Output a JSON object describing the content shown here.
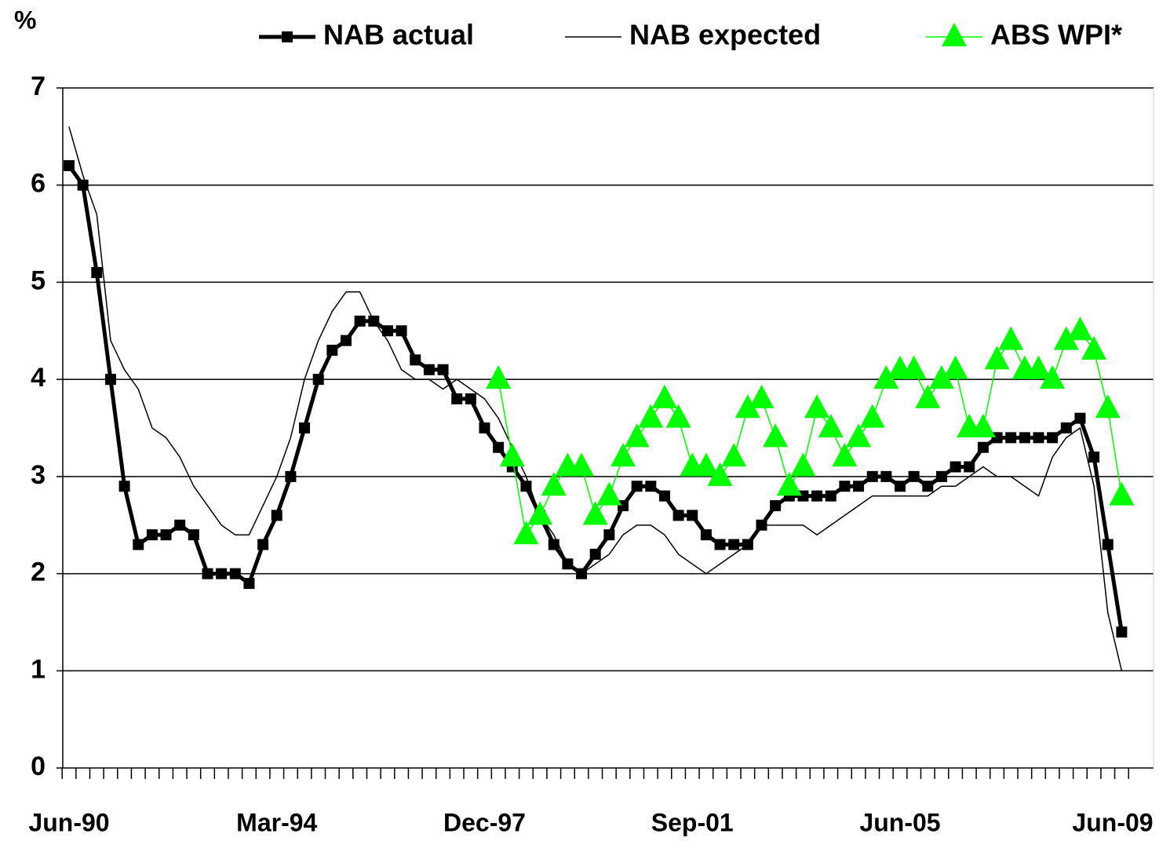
{
  "chart_data": {
    "type": "line",
    "y_label": "%",
    "categories": [
      "Jun-90",
      null,
      null,
      null,
      null,
      null,
      null,
      null,
      null,
      null,
      null,
      null,
      null,
      null,
      null,
      "Mar-94",
      null,
      null,
      null,
      null,
      null,
      null,
      null,
      null,
      null,
      null,
      null,
      null,
      null,
      null,
      "Dec-97",
      null,
      null,
      null,
      null,
      null,
      null,
      null,
      null,
      null,
      null,
      null,
      null,
      null,
      null,
      "Sep-01",
      null,
      null,
      null,
      null,
      null,
      null,
      null,
      null,
      null,
      null,
      null,
      null,
      null,
      null,
      "Jun-05",
      null,
      null,
      null,
      null,
      null,
      null,
      null,
      null,
      null,
      null,
      null,
      null,
      null,
      null,
      null,
      "Jun-09"
    ],
    "series": [
      {
        "name": "NAB actual",
        "color": "#000000",
        "marker": "square",
        "width": 5,
        "values": [
          6.2,
          6.0,
          5.1,
          4.0,
          2.9,
          2.3,
          2.4,
          2.4,
          2.5,
          2.4,
          2.0,
          2.0,
          2.0,
          1.9,
          2.3,
          2.6,
          3.0,
          3.5,
          4.0,
          4.3,
          4.4,
          4.6,
          4.6,
          4.5,
          4.5,
          4.2,
          4.1,
          4.1,
          3.8,
          3.8,
          3.5,
          3.3,
          3.1,
          2.9,
          2.6,
          2.3,
          2.1,
          2.0,
          2.2,
          2.4,
          2.7,
          2.9,
          2.9,
          2.8,
          2.6,
          2.6,
          2.4,
          2.3,
          2.3,
          2.3,
          2.5,
          2.7,
          2.8,
          2.8,
          2.8,
          2.8,
          2.9,
          2.9,
          3.0,
          3.0,
          2.9,
          3.0,
          2.9,
          3.0,
          3.1,
          3.1,
          3.3,
          3.4,
          3.4,
          3.4,
          3.4,
          3.4,
          3.5,
          3.6,
          3.2,
          2.3,
          1.4
        ]
      },
      {
        "name": "NAB expected",
        "color": "#000000",
        "marker": "none",
        "width": 1.5,
        "values": [
          6.6,
          6.1,
          5.7,
          4.4,
          4.1,
          3.9,
          3.5,
          3.4,
          3.2,
          2.9,
          2.7,
          2.5,
          2.4,
          2.4,
          2.7,
          3.0,
          3.4,
          4.0,
          4.4,
          4.7,
          4.9,
          4.9,
          4.6,
          4.4,
          4.1,
          4.0,
          4.0,
          3.9,
          4.0,
          3.9,
          3.8,
          3.6,
          3.3,
          3.0,
          2.6,
          2.4,
          2.1,
          2.0,
          2.1,
          2.2,
          2.4,
          2.5,
          2.5,
          2.4,
          2.2,
          2.1,
          2.0,
          2.1,
          2.2,
          2.3,
          2.5,
          2.5,
          2.5,
          2.5,
          2.4,
          2.5,
          2.6,
          2.7,
          2.8,
          2.8,
          2.8,
          2.8,
          2.8,
          2.9,
          2.9,
          3.0,
          3.1,
          3.0,
          3.0,
          2.9,
          2.8,
          3.2,
          3.4,
          3.5,
          2.9,
          1.6,
          1.0
        ]
      },
      {
        "name": "ABS WPI*",
        "color": "#00FF00",
        "marker": "triangle",
        "width": 1.5,
        "values": [
          null,
          null,
          null,
          null,
          null,
          null,
          null,
          null,
          null,
          null,
          null,
          null,
          null,
          null,
          null,
          null,
          null,
          null,
          null,
          null,
          null,
          null,
          null,
          null,
          null,
          null,
          null,
          null,
          null,
          null,
          null,
          4.0,
          3.2,
          2.4,
          2.6,
          2.9,
          3.1,
          3.1,
          2.6,
          2.8,
          3.2,
          3.4,
          3.6,
          3.8,
          3.6,
          3.1,
          3.1,
          3.0,
          3.2,
          3.7,
          3.8,
          3.4,
          2.9,
          3.1,
          3.7,
          3.5,
          3.2,
          3.4,
          3.6,
          4.0,
          4.1,
          4.1,
          3.8,
          4.0,
          4.1,
          3.5,
          3.5,
          4.2,
          4.4,
          4.1,
          4.1,
          4.0,
          4.4,
          4.5,
          4.3,
          3.7,
          2.8
        ]
      }
    ],
    "ylim": [
      0,
      7
    ],
    "yticks": [
      0,
      1,
      2,
      3,
      4,
      5,
      6,
      7
    ],
    "grid": true,
    "legend": "top"
  }
}
